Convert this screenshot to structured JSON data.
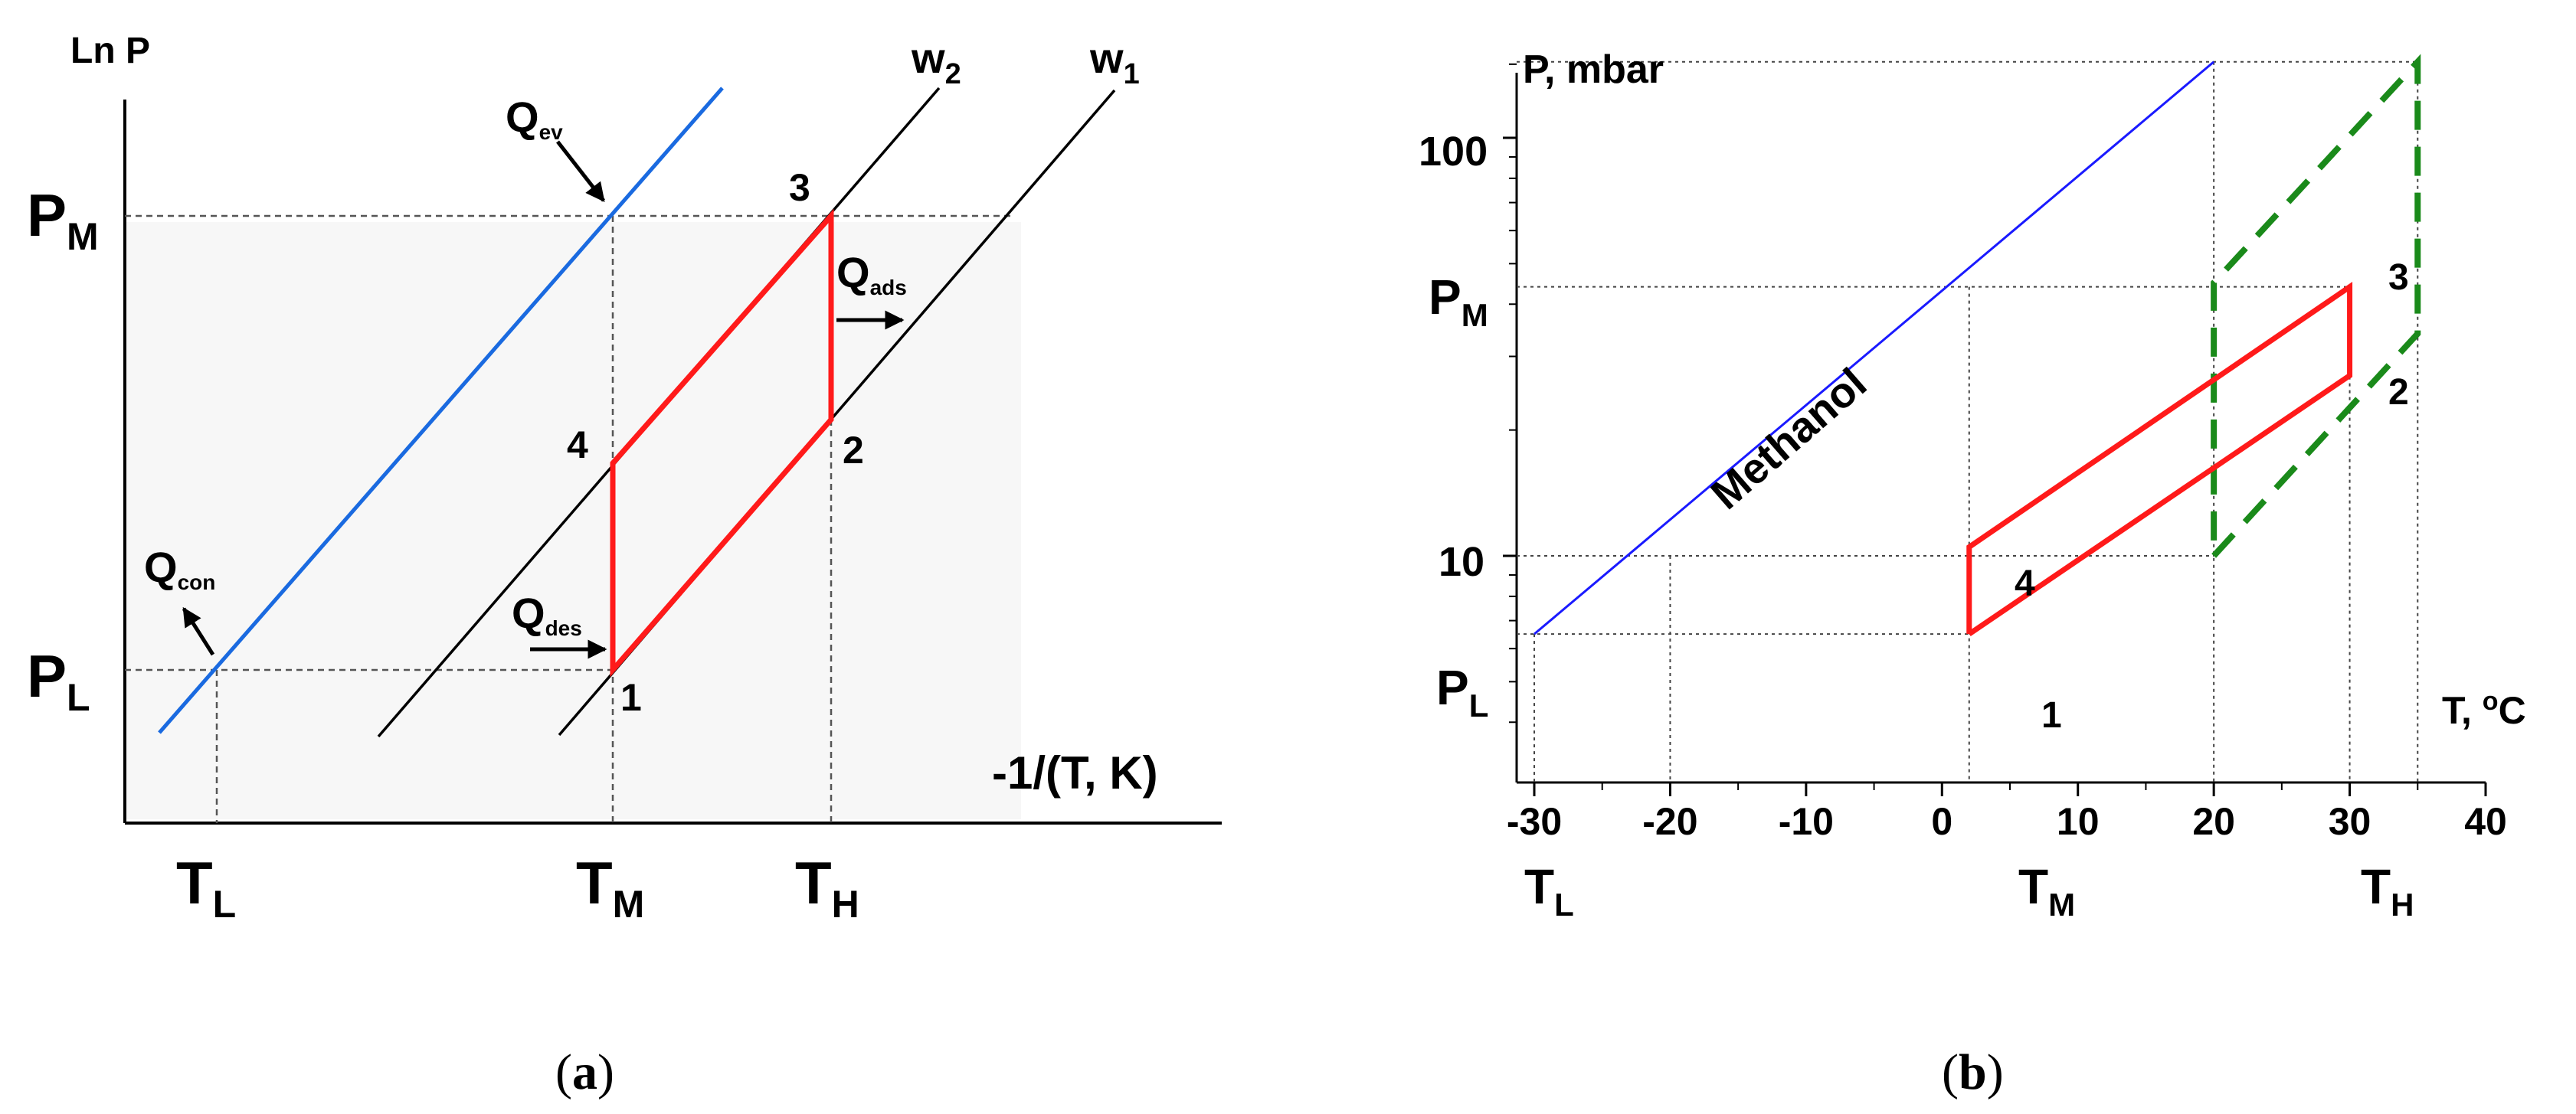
{
  "panel_a": {
    "y_axis_label": "Ln P",
    "x_axis_label": "-1/(T, K)",
    "p_m": {
      "main": "P",
      "sub": "M"
    },
    "p_l": {
      "main": "P",
      "sub": "L"
    },
    "t_l": {
      "main": "T",
      "sub": "L"
    },
    "t_m": {
      "main": "T",
      "sub": "M"
    },
    "t_h": {
      "main": "T",
      "sub": "H"
    },
    "w2": {
      "main": "w",
      "sub": "2"
    },
    "w1": {
      "main": "w",
      "sub": "1"
    },
    "q_ev": {
      "main": "Q",
      "sub": "ev"
    },
    "q_ads": {
      "main": "Q",
      "sub": "ads"
    },
    "q_des": {
      "main": "Q",
      "sub": "des"
    },
    "q_con": {
      "main": "Q",
      "sub": "con"
    },
    "points": [
      "1",
      "2",
      "3",
      "4"
    ],
    "caption": {
      "open": "(",
      "letter": "a",
      "close": ")"
    }
  },
  "panel_b": {
    "y_axis_label": "P, mbar",
    "x_axis_label": {
      "main": "T, ",
      "sup": "o",
      "tail": "C"
    },
    "methanol_label": "Methanol",
    "y_ticks": [
      "100",
      "10"
    ],
    "p_m": {
      "main": "P",
      "sub": "M"
    },
    "p_l": {
      "main": "P",
      "sub": "L"
    },
    "t_l": {
      "main": "T",
      "sub": "L"
    },
    "t_m": {
      "main": "T",
      "sub": "M"
    },
    "t_h": {
      "main": "T",
      "sub": "H"
    },
    "points": [
      "1",
      "2",
      "3",
      "4"
    ],
    "caption": {
      "open": "(",
      "letter": "b",
      "close": ")"
    }
  },
  "chart_data": {
    "type": "line",
    "xlabel": "T, oC",
    "ylabel": "P, mbar",
    "xlim": [
      -30,
      40
    ],
    "x_ticks": [
      -30,
      -20,
      -10,
      0,
      10,
      20,
      30,
      40
    ],
    "y_ticks": [
      10,
      100
    ],
    "y_scale": "log",
    "colors": {
      "methanol": "#1a1aff",
      "cycle": "#ff1a1a",
      "envelope": "#1a8a1a"
    },
    "series": [
      {
        "name": "Methanol",
        "x": [
          -30,
          20
        ],
        "y": [
          6.5,
          152
        ]
      },
      {
        "x": [
          2,
          30,
          30,
          2,
          2
        ],
        "y": [
          6.5,
          27,
          44,
          10.5,
          6.5
        ]
      },
      {
        "x": [
          20,
          35,
          35,
          20,
          20
        ],
        "y": [
          10,
          34,
          152,
          45,
          10
        ]
      }
    ]
  }
}
